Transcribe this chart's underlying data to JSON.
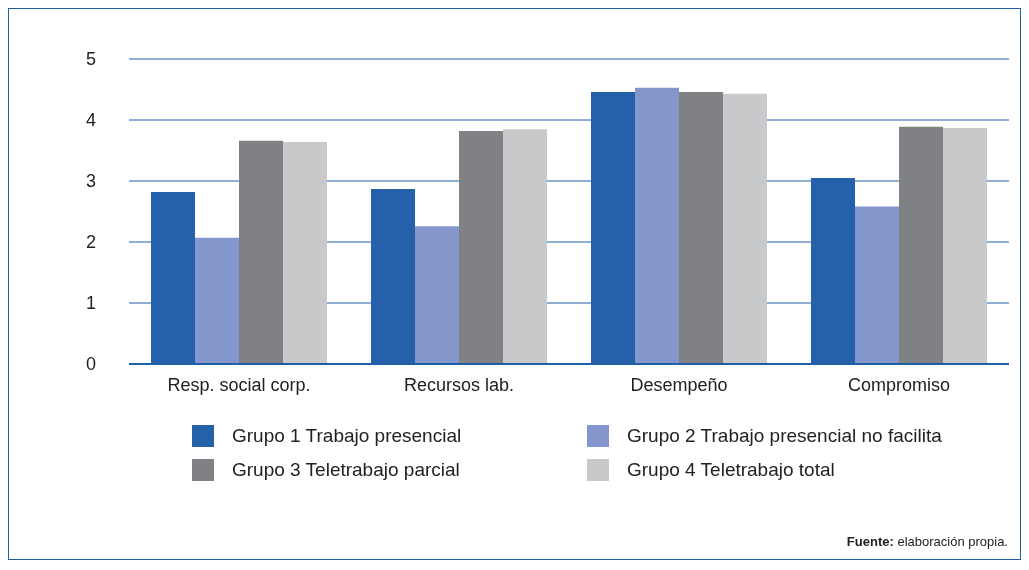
{
  "chart_data": {
    "type": "bar",
    "categories": [
      "Resp. social corp.",
      "Recursos lab.",
      "Desempeño",
      "Compromiso"
    ],
    "series": [
      {
        "name": "Grupo 1 Trabajo presencial",
        "color": "#2560ab",
        "values": [
          2.82,
          2.87,
          4.46,
          3.05
        ]
      },
      {
        "name": "Grupo 2 Trabajo presencial no facilita",
        "color": "#8497cc",
        "values": [
          2.07,
          2.26,
          4.53,
          2.58
        ]
      },
      {
        "name": "Grupo 3 Teletrabajo parcial",
        "color": "#808184",
        "values": [
          3.66,
          3.82,
          4.46,
          3.89
        ]
      },
      {
        "name": "Grupo 4 Teletrabajo total",
        "color": "#c8c9cb",
        "values": [
          3.64,
          3.85,
          4.43,
          3.87
        ]
      }
    ],
    "ylim": [
      0,
      5
    ],
    "yticks": [
      0,
      1,
      2,
      3,
      4,
      5
    ],
    "grid": "y",
    "legend": "bottom",
    "annotations": [
      "Fuente: elaboración propia."
    ]
  }
}
